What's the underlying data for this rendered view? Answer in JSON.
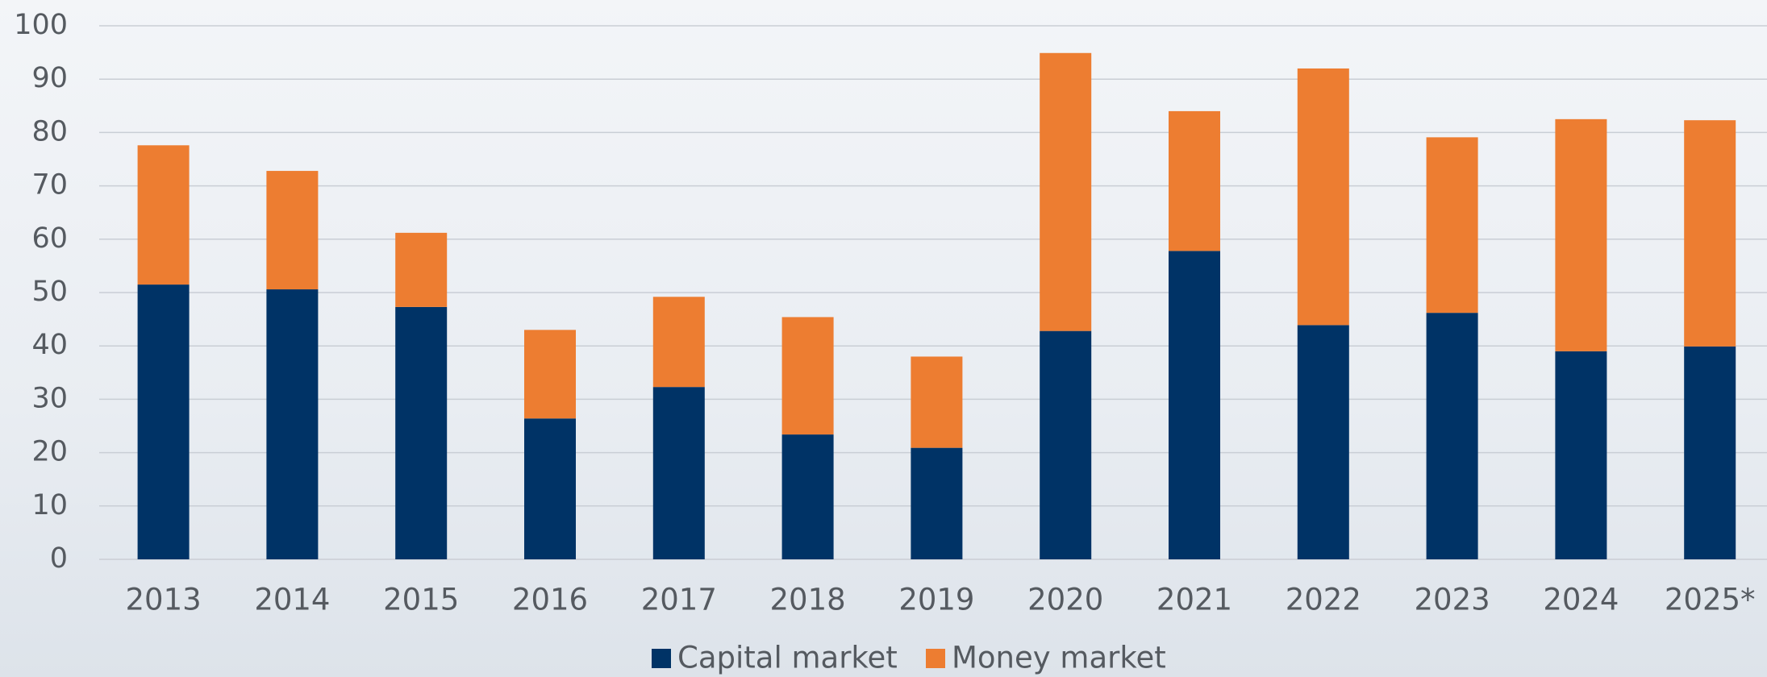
{
  "chart_data": {
    "type": "stacked_bar",
    "categories": [
      "2013",
      "2014",
      "2015",
      "2016",
      "2017",
      "2018",
      "2019",
      "2020",
      "2021",
      "2022",
      "2023",
      "2024",
      "2025*"
    ],
    "series": [
      {
        "name": "Capital market",
        "color": "#003366",
        "values": [
          51.5,
          50.6,
          47.3,
          26.4,
          32.3,
          23.4,
          20.9,
          42.8,
          57.8,
          43.9,
          46.2,
          39.0,
          39.9
        ]
      },
      {
        "name": "Money market",
        "color": "#ed7d31",
        "values": [
          26.1,
          22.2,
          13.9,
          16.6,
          16.9,
          22.0,
          17.1,
          52.1,
          26.2,
          48.1,
          32.9,
          43.5,
          42.4
        ]
      }
    ],
    "ylim": [
      0,
      100
    ],
    "yticks": [
      0,
      10,
      20,
      30,
      40,
      50,
      60,
      70,
      80,
      90,
      100
    ],
    "grid": true,
    "legend": "bottom"
  }
}
